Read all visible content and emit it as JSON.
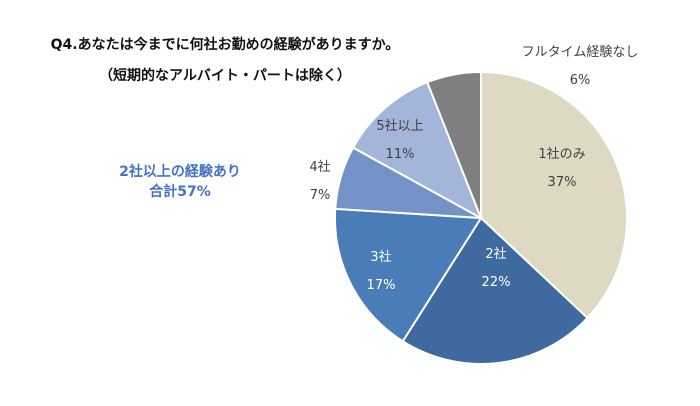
{
  "chart_data": {
    "type": "pie",
    "title": "Q4.あなたは今までに何社お勤めの経験がありますか。",
    "subtitle": "（短期的なアルバイト・パートは除く）",
    "annotation": [
      "2社以上の経験あり",
      "合計57%"
    ],
    "start_angle": "top",
    "direction": "clockwise",
    "slices": [
      {
        "label": "1社のみ",
        "value": 37,
        "value_label": "37%",
        "color": "#ddd9c3",
        "text_color": "#404040"
      },
      {
        "label": "2社",
        "value": 22,
        "value_label": "22%",
        "color": "#3f6aa0",
        "text_color": "#ffffff"
      },
      {
        "label": "3社",
        "value": 17,
        "value_label": "17%",
        "color": "#4a7cb8",
        "text_color": "#ffffff"
      },
      {
        "label": "4社",
        "value": 7,
        "value_label": "7%",
        "color": "#7393c6",
        "text_color": "#404040"
      },
      {
        "label": "5社以上",
        "value": 11,
        "value_label": "11%",
        "color": "#a3b5d8",
        "text_color": "#404040"
      },
      {
        "label": "フルタイム経験なし",
        "value": 6,
        "value_label": "6%",
        "color": "#7f7f7f",
        "text_color": "#404040"
      }
    ],
    "legend": "none"
  }
}
